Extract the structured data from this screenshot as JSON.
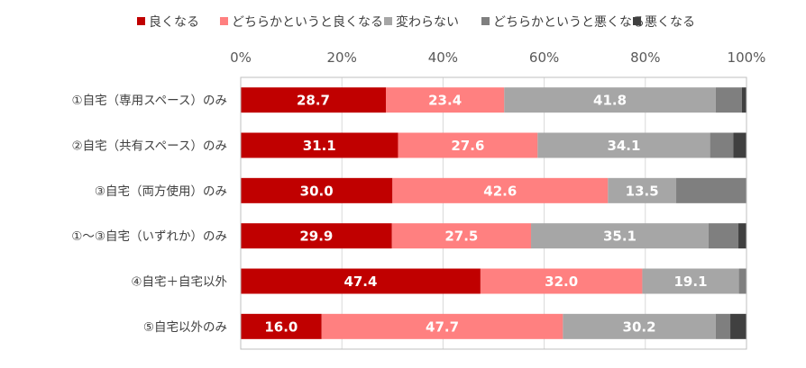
{
  "chart_data": {
    "type": "bar",
    "orientation": "horizontal",
    "stacked": true,
    "percent": true,
    "title": "",
    "xlabel": "",
    "ylabel": "",
    "xlim": [
      0,
      100
    ],
    "x_ticks": [
      "0%",
      "20%",
      "40%",
      "60%",
      "80%",
      "100%"
    ],
    "grid": true,
    "legend_position": "top",
    "categories": [
      "①自宅（専用スペース）のみ",
      "②自宅（共有スペース）のみ",
      "③自宅（両方使用）のみ",
      "①～③自宅（いずれか）のみ",
      "④自宅＋自宅以外",
      "⑤自宅以外のみ"
    ],
    "series": [
      {
        "name": "良くなる",
        "color": "#C00000",
        "values": [
          28.7,
          31.1,
          30.0,
          29.9,
          47.4,
          16.0
        ],
        "labels": [
          "28.7",
          "31.1",
          "30.0",
          "29.9",
          "47.4",
          "16.0"
        ]
      },
      {
        "name": "どちらかというと良くなる",
        "color": "#FF8080",
        "values": [
          23.4,
          27.6,
          42.6,
          27.5,
          32.0,
          47.7
        ],
        "labels": [
          "23.4",
          "27.6",
          "42.6",
          "27.5",
          "32.0",
          "47.7"
        ]
      },
      {
        "name": "変わらない",
        "color": "#A6A6A6",
        "values": [
          41.8,
          34.1,
          13.5,
          35.1,
          19.1,
          30.2
        ],
        "labels": [
          "41.8",
          "34.1",
          "13.5",
          "35.1",
          "19.1",
          "30.2"
        ]
      },
      {
        "name": "どちらかというと悪くなる",
        "color": "#7F7F7F",
        "values": [
          5.2,
          4.6,
          13.9,
          5.9,
          1.5,
          2.9
        ],
        "labels": [
          "",
          "",
          "",
          "",
          "",
          ""
        ]
      },
      {
        "name": "悪くなる",
        "color": "#404040",
        "values": [
          0.9,
          2.6,
          0.0,
          1.6,
          0.0,
          3.2
        ],
        "labels": [
          "",
          "",
          "",
          "",
          "",
          ""
        ]
      }
    ]
  }
}
